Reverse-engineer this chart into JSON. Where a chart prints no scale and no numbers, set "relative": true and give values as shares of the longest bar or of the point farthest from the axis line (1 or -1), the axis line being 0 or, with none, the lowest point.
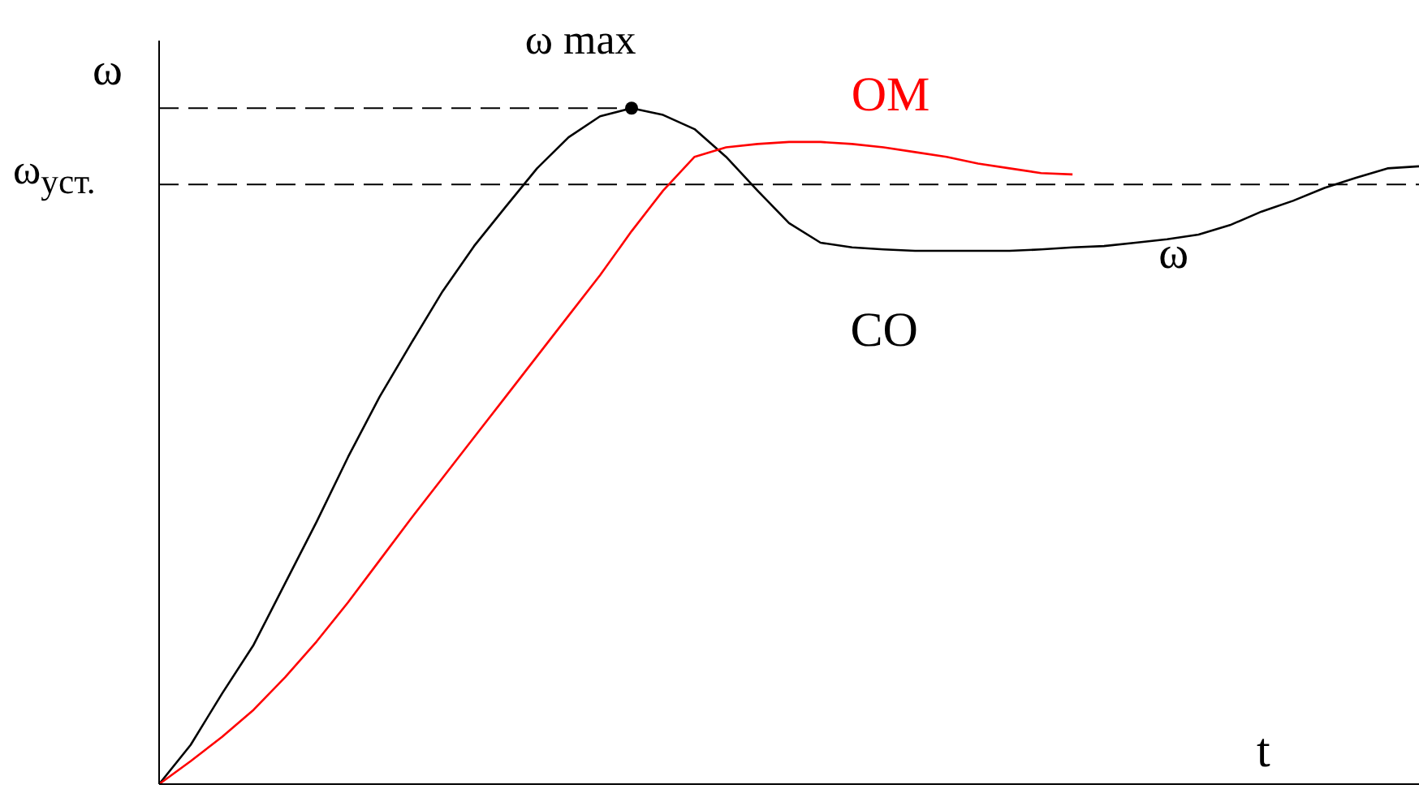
{
  "chart_data": {
    "type": "line",
    "relative": true,
    "xlabel": "t",
    "ylabel": "ω",
    "categories": [
      null,
      null,
      null,
      null,
      null,
      null,
      null,
      null,
      null,
      null,
      null,
      null,
      null,
      null,
      null,
      null,
      null,
      null,
      null,
      null,
      null,
      null,
      null,
      null,
      null,
      null,
      null,
      null,
      null,
      null,
      null,
      null,
      null,
      null,
      null,
      null,
      null,
      null,
      null,
      null,
      null
    ],
    "series": [
      {
        "name": "СО",
        "color": "#000000",
        "values": [
          0,
          0.058,
          0.134,
          0.206,
          0.297,
          0.388,
          0.484,
          0.573,
          0.652,
          0.729,
          0.796,
          0.854,
          0.911,
          0.957,
          0.988,
          1,
          0.99,
          0.969,
          0.928,
          0.878,
          0.83,
          0.801,
          0.794,
          0.791,
          0.789,
          0.789,
          0.789,
          0.789,
          0.791,
          0.794,
          0.796,
          0.801,
          0.806,
          0.813,
          0.827,
          0.847,
          0.863,
          0.882,
          0.897,
          0.911,
          0.914
        ]
      },
      {
        "name": "ОМ",
        "color": "#ff0000",
        "values": [
          0,
          0.034,
          0.07,
          0.11,
          0.158,
          0.211,
          0.269,
          0.331,
          0.393,
          0.453,
          0.513,
          0.573,
          0.633,
          0.693,
          0.753,
          0.818,
          0.878,
          0.928,
          0.942,
          0.947,
          0.95,
          0.95,
          0.947,
          0.942,
          0.935,
          0.928,
          0.918,
          0.911,
          0.904,
          0.902,
          null,
          null,
          null,
          null,
          null,
          null,
          null,
          null,
          null,
          null,
          null
        ]
      }
    ],
    "ref_lines": [
      {
        "axis": "y",
        "value": 1,
        "label": "ω max",
        "line_style": "dashed",
        "color": "#000000"
      },
      {
        "axis": "y",
        "value": 0.887,
        "label": "ω$_{уст.}$",
        "line_style": "dashed",
        "color": "#000000"
      }
    ],
    "annotations": [
      "ω"
    ],
    "marker": "none",
    "line_style": "solid"
  }
}
